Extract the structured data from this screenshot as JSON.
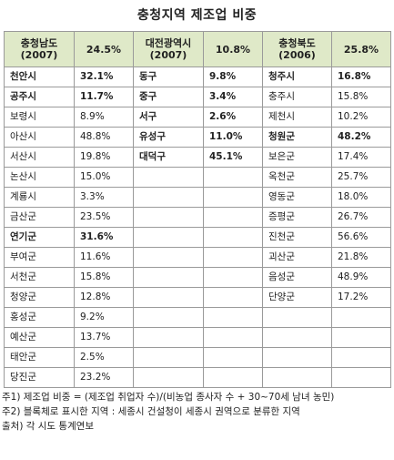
{
  "title": "충청지역 제조업 비중",
  "headers": [
    {
      "region": "충청남도",
      "year": "(2007)",
      "pct": "24.5%"
    },
    {
      "region": "대전광역시",
      "year": "(2007)",
      "pct": "10.8%"
    },
    {
      "region": "충청북도",
      "year": "(2006)",
      "pct": "25.8%"
    }
  ],
  "rows": [
    [
      {
        "n": "천안시",
        "v": "32.1%",
        "b": true
      },
      {
        "n": "동구",
        "v": "9.8%",
        "b": true
      },
      {
        "n": "청주시",
        "v": "16.8%",
        "b": true
      }
    ],
    [
      {
        "n": "공주시",
        "v": "11.7%",
        "b": true
      },
      {
        "n": "중구",
        "v": "3.4%",
        "b": true
      },
      {
        "n": "충주시",
        "v": "15.8%",
        "b": false
      }
    ],
    [
      {
        "n": "보령시",
        "v": "8.9%",
        "b": false
      },
      {
        "n": "서구",
        "v": "2.6%",
        "b": true
      },
      {
        "n": "제천시",
        "v": "10.2%",
        "b": false
      }
    ],
    [
      {
        "n": "아산시",
        "v": "48.8%",
        "b": false
      },
      {
        "n": "유성구",
        "v": "11.0%",
        "b": true
      },
      {
        "n": "청원군",
        "v": "48.2%",
        "b": true
      }
    ],
    [
      {
        "n": "서산시",
        "v": "19.8%",
        "b": false
      },
      {
        "n": "대덕구",
        "v": "45.1%",
        "b": true
      },
      {
        "n": "보은군",
        "v": "17.4%",
        "b": false
      }
    ],
    [
      {
        "n": "논산시",
        "v": "15.0%",
        "b": false
      },
      {
        "n": "",
        "v": "",
        "b": false
      },
      {
        "n": "옥천군",
        "v": "25.7%",
        "b": false
      }
    ],
    [
      {
        "n": "계룡시",
        "v": "3.3%",
        "b": false
      },
      {
        "n": "",
        "v": "",
        "b": false
      },
      {
        "n": "영동군",
        "v": "18.0%",
        "b": false
      }
    ],
    [
      {
        "n": "금산군",
        "v": "23.5%",
        "b": false
      },
      {
        "n": "",
        "v": "",
        "b": false
      },
      {
        "n": "증평군",
        "v": "26.7%",
        "b": false
      }
    ],
    [
      {
        "n": "연기군",
        "v": "31.6%",
        "b": true
      },
      {
        "n": "",
        "v": "",
        "b": false
      },
      {
        "n": "진천군",
        "v": "56.6%",
        "b": false
      }
    ],
    [
      {
        "n": "부여군",
        "v": "11.6%",
        "b": false
      },
      {
        "n": "",
        "v": "",
        "b": false
      },
      {
        "n": "괴산군",
        "v": "21.8%",
        "b": false
      }
    ],
    [
      {
        "n": "서천군",
        "v": "15.8%",
        "b": false
      },
      {
        "n": "",
        "v": "",
        "b": false
      },
      {
        "n": "음성군",
        "v": "48.9%",
        "b": false
      }
    ],
    [
      {
        "n": "청양군",
        "v": "12.8%",
        "b": false
      },
      {
        "n": "",
        "v": "",
        "b": false
      },
      {
        "n": "단양군",
        "v": "17.2%",
        "b": false
      }
    ],
    [
      {
        "n": "홍성군",
        "v": "9.2%",
        "b": false
      },
      {
        "n": "",
        "v": "",
        "b": false
      },
      {
        "n": "",
        "v": "",
        "b": false
      }
    ],
    [
      {
        "n": "예산군",
        "v": "13.7%",
        "b": false
      },
      {
        "n": "",
        "v": "",
        "b": false
      },
      {
        "n": "",
        "v": "",
        "b": false
      }
    ],
    [
      {
        "n": "태안군",
        "v": "2.5%",
        "b": false
      },
      {
        "n": "",
        "v": "",
        "b": false
      },
      {
        "n": "",
        "v": "",
        "b": false
      }
    ],
    [
      {
        "n": "당진군",
        "v": "23.2%",
        "b": false
      },
      {
        "n": "",
        "v": "",
        "b": false
      },
      {
        "n": "",
        "v": "",
        "b": false
      }
    ]
  ],
  "notes": {
    "note1": "주1) 제조업 비중 = (제조업 취업자 수)/(비농업 종사자 수 + 30~70세 남녀 농민)",
    "note2": "주2) 블록체로 표시한 지역 : 세종시 건설청이 세종시 권역으로 분류한 지역",
    "source": "출처) 각 시도 통계연보"
  },
  "colors": {
    "header_bg": "#dfe9c8",
    "border": "#9a9a9a"
  }
}
